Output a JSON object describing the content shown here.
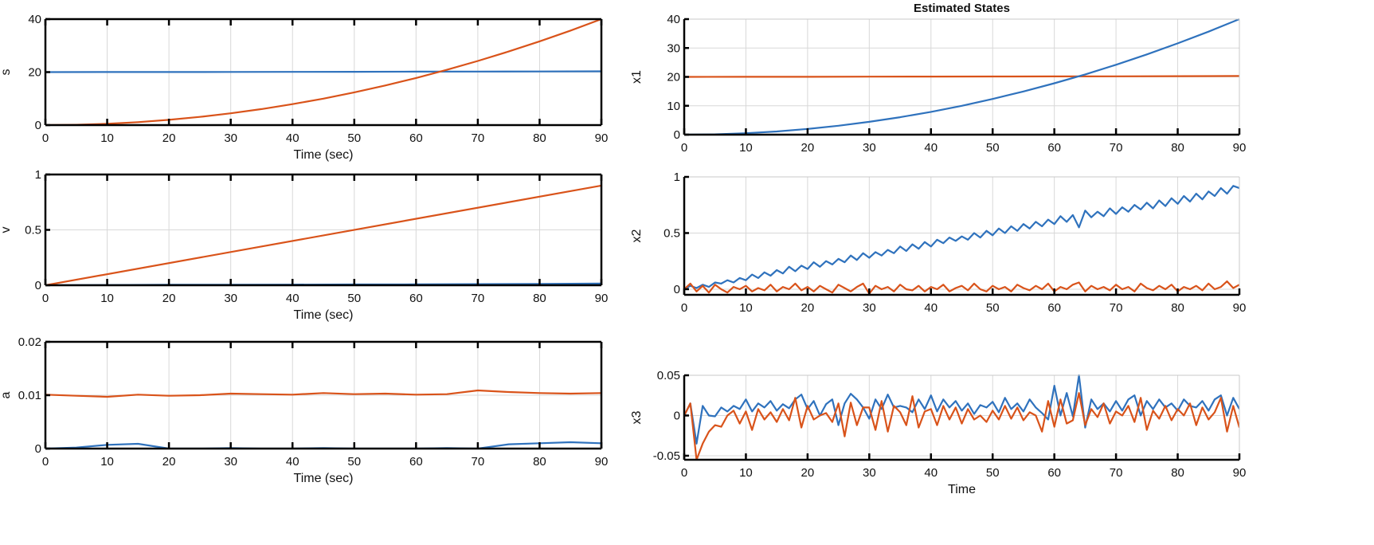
{
  "colors": {
    "series_blue": "#2F72BD",
    "series_orange": "#D9531A",
    "grid": "#D8D8D8"
  },
  "time": [
    0,
    1,
    2,
    3,
    4,
    5,
    6,
    7,
    8,
    9,
    10,
    11,
    12,
    13,
    14,
    15,
    16,
    17,
    18,
    19,
    20,
    21,
    22,
    23,
    24,
    25,
    26,
    27,
    28,
    29,
    30,
    31,
    32,
    33,
    34,
    35,
    36,
    37,
    38,
    39,
    40,
    41,
    42,
    43,
    44,
    45,
    46,
    47,
    48,
    49,
    50,
    51,
    52,
    53,
    54,
    55,
    56,
    57,
    58,
    59,
    60,
    61,
    62,
    63,
    64,
    65,
    66,
    67,
    68,
    69,
    70,
    71,
    72,
    73,
    74,
    75,
    76,
    77,
    78,
    79,
    80,
    81,
    82,
    83,
    84,
    85,
    86,
    87,
    88,
    89,
    90
  ],
  "chart_data": [
    {
      "id": "s",
      "type": "line",
      "title": "",
      "xlabel": "Time (sec)",
      "ylabel": "s",
      "xlim": [
        0,
        90
      ],
      "ylim": [
        0,
        40
      ],
      "xticks": [
        0,
        10,
        20,
        30,
        40,
        50,
        60,
        70,
        80,
        90
      ],
      "yticks": [
        0,
        20,
        40
      ],
      "yticklabels": [
        "0",
        "20",
        "40"
      ],
      "grid": true,
      "series": [
        {
          "color": "series_blue",
          "x": [
            0,
            10,
            20,
            30,
            40,
            50,
            60,
            70,
            80,
            90
          ],
          "values": [
            20,
            20.02,
            20.04,
            20.07,
            20.1,
            20.13,
            20.17,
            20.2,
            20.25,
            20.3
          ]
        },
        {
          "color": "series_orange",
          "x": [
            0,
            5,
            10,
            15,
            20,
            25,
            30,
            35,
            40,
            45,
            50,
            55,
            60,
            65,
            70,
            75,
            80,
            85,
            90
          ],
          "values": [
            0,
            0.12,
            0.49,
            1.11,
            1.98,
            3.09,
            4.44,
            6.05,
            7.9,
            10,
            12.35,
            14.94,
            17.78,
            20.86,
            24.2,
            27.78,
            31.6,
            35.68,
            40
          ]
        }
      ]
    },
    {
      "id": "v",
      "type": "line",
      "title": "",
      "xlabel": "Time (sec)",
      "ylabel": "v",
      "xlim": [
        0,
        90
      ],
      "ylim": [
        0,
        1
      ],
      "xticks": [
        0,
        10,
        20,
        30,
        40,
        50,
        60,
        70,
        80,
        90
      ],
      "yticks": [
        0,
        0.5,
        1
      ],
      "yticklabels": [
        "0",
        "0.5",
        "1"
      ],
      "grid": true,
      "series": [
        {
          "color": "series_blue",
          "x": [
            0,
            10,
            20,
            30,
            40,
            50,
            60,
            70,
            80,
            90
          ],
          "values": [
            0,
            0.002,
            0.004,
            0.005,
            0.006,
            0.007,
            0.008,
            0.01,
            0.012,
            0.015
          ]
        },
        {
          "color": "series_orange",
          "x": [
            0,
            90
          ],
          "values": [
            0,
            0.9
          ]
        }
      ]
    },
    {
      "id": "a",
      "type": "line",
      "title": "",
      "xlabel": "Time (sec)",
      "ylabel": "a",
      "xlim": [
        0,
        90
      ],
      "ylim": [
        0,
        0.02
      ],
      "xticks": [
        0,
        10,
        20,
        30,
        40,
        50,
        60,
        70,
        80,
        90
      ],
      "yticks": [
        0,
        0.01,
        0.02
      ],
      "yticklabels": [
        "0",
        "0.01",
        "0.02"
      ],
      "grid": true,
      "series": [
        {
          "color": "series_orange",
          "x": [
            0,
            5,
            10,
            15,
            20,
            25,
            30,
            35,
            40,
            45,
            50,
            55,
            60,
            65,
            70,
            75,
            80,
            85,
            90
          ],
          "values": [
            0.0101,
            0.0099,
            0.0097,
            0.0101,
            0.0099,
            0.01,
            0.0103,
            0.0102,
            0.0101,
            0.0104,
            0.0102,
            0.0103,
            0.0101,
            0.0102,
            0.0109,
            0.0106,
            0.0104,
            0.0103,
            0.0104
          ]
        },
        {
          "color": "series_blue",
          "x": [
            0,
            5,
            10,
            15,
            20,
            25,
            30,
            35,
            40,
            45,
            50,
            55,
            60,
            65,
            70,
            75,
            80,
            85,
            90
          ],
          "values": [
            0,
            0.0002,
            0.0007,
            0.0009,
            0,
            0,
            0.0001,
            0,
            0,
            0.0001,
            0,
            0,
            0,
            0.0001,
            0,
            0.0008,
            0.001,
            0.0012,
            0.001
          ]
        }
      ]
    },
    {
      "id": "x1",
      "type": "line",
      "title": "Estimated States",
      "xlabel": "",
      "ylabel": "x1",
      "xlim": [
        0,
        90
      ],
      "ylim": [
        0,
        40
      ],
      "xticks": [
        0,
        10,
        20,
        30,
        40,
        50,
        60,
        70,
        80,
        90
      ],
      "yticks": [
        0,
        10,
        20,
        30,
        40
      ],
      "yticklabels": [
        "0",
        "10",
        "20",
        "30",
        "40"
      ],
      "grid": true,
      "series": [
        {
          "color": "series_orange",
          "x": [
            0,
            10,
            20,
            30,
            40,
            50,
            60,
            70,
            80,
            90
          ],
          "values": [
            20,
            20.02,
            20.04,
            20.07,
            20.1,
            20.13,
            20.17,
            20.2,
            20.25,
            20.3
          ]
        },
        {
          "color": "series_blue",
          "x": [
            0,
            5,
            10,
            15,
            20,
            25,
            30,
            35,
            40,
            45,
            50,
            55,
            60,
            65,
            70,
            75,
            80,
            85,
            90
          ],
          "values": [
            0,
            0.12,
            0.49,
            1.11,
            1.98,
            3.09,
            4.44,
            6.05,
            7.9,
            10,
            12.35,
            14.94,
            17.78,
            20.86,
            24.2,
            27.78,
            31.6,
            35.68,
            40
          ]
        }
      ]
    },
    {
      "id": "x2",
      "type": "line",
      "title": "",
      "xlabel": "",
      "ylabel": "x2",
      "xlim": [
        0,
        90
      ],
      "ylim": [
        -0.05,
        1
      ],
      "xticks": [
        0,
        10,
        20,
        30,
        40,
        50,
        60,
        70,
        80,
        90
      ],
      "yticks": [
        0,
        0.5,
        1
      ],
      "yticklabels": [
        "0",
        "0.5",
        "1"
      ],
      "grid": true,
      "series": [
        {
          "color": "series_blue",
          "x": "time",
          "values": [
            0.0,
            0.03,
            0.01,
            0.04,
            0.02,
            0.06,
            0.05,
            0.08,
            0.06,
            0.1,
            0.08,
            0.13,
            0.1,
            0.15,
            0.12,
            0.17,
            0.14,
            0.2,
            0.16,
            0.21,
            0.18,
            0.24,
            0.2,
            0.25,
            0.22,
            0.27,
            0.24,
            0.3,
            0.26,
            0.32,
            0.28,
            0.33,
            0.3,
            0.35,
            0.32,
            0.38,
            0.34,
            0.4,
            0.36,
            0.42,
            0.38,
            0.44,
            0.41,
            0.46,
            0.43,
            0.47,
            0.44,
            0.5,
            0.46,
            0.52,
            0.48,
            0.54,
            0.5,
            0.56,
            0.52,
            0.58,
            0.54,
            0.6,
            0.56,
            0.62,
            0.58,
            0.65,
            0.6,
            0.66,
            0.55,
            0.7,
            0.64,
            0.69,
            0.65,
            0.72,
            0.67,
            0.73,
            0.69,
            0.75,
            0.71,
            0.77,
            0.72,
            0.79,
            0.74,
            0.81,
            0.76,
            0.83,
            0.78,
            0.85,
            0.8,
            0.87,
            0.83,
            0.9,
            0.85,
            0.92,
            0.9
          ]
        },
        {
          "color": "series_orange",
          "x": "time",
          "values": [
            0.0,
            0.05,
            -0.02,
            0.03,
            -0.03,
            0.04,
            0.0,
            -0.03,
            0.02,
            0.0,
            0.03,
            -0.02,
            0.01,
            -0.01,
            0.04,
            -0.02,
            0.02,
            0.0,
            0.05,
            -0.01,
            0.02,
            -0.02,
            0.03,
            0.0,
            -0.03,
            0.04,
            0.01,
            -0.02,
            0.02,
            0.05,
            -0.04,
            0.03,
            0.0,
            0.02,
            -0.02,
            0.04,
            0.0,
            -0.01,
            0.03,
            -0.02,
            0.02,
            0.0,
            0.04,
            -0.02,
            0.01,
            0.03,
            -0.01,
            0.05,
            0.0,
            -0.02,
            0.03,
            0.0,
            0.02,
            -0.02,
            0.04,
            0.01,
            -0.01,
            0.03,
            0.0,
            0.05,
            -0.02,
            0.02,
            0.0,
            0.04,
            0.06,
            -0.02,
            0.03,
            0.0,
            0.02,
            -0.01,
            0.04,
            0.0,
            0.02,
            -0.02,
            0.05,
            0.01,
            -0.01,
            0.03,
            0.0,
            0.04,
            -0.02,
            0.02,
            0.0,
            0.03,
            -0.01,
            0.05,
            0.0,
            0.02,
            0.07,
            0.01,
            0.04
          ]
        }
      ]
    },
    {
      "id": "x3",
      "type": "line",
      "title": "",
      "xlabel": "Time",
      "ylabel": "x3",
      "xlim": [
        0,
        90
      ],
      "ylim": [
        -0.055,
        0.05
      ],
      "xticks": [
        0,
        10,
        20,
        30,
        40,
        50,
        60,
        70,
        80,
        90
      ],
      "yticks": [
        -0.05,
        0,
        0.05
      ],
      "yticklabels": [
        "-0.05",
        "0",
        "0.05"
      ],
      "grid": true,
      "series": [
        {
          "color": "series_blue",
          "x": "time",
          "values": [
            0.0,
            0.015,
            -0.035,
            0.012,
            0.0,
            -0.001,
            0.01,
            0.005,
            0.012,
            0.008,
            0.02,
            0.005,
            0.015,
            0.01,
            0.018,
            0.006,
            0.014,
            0.009,
            0.02,
            0.026,
            0.008,
            0.018,
            0.0,
            0.014,
            0.02,
            -0.012,
            0.015,
            0.027,
            0.02,
            0.01,
            -0.004,
            0.02,
            0.008,
            0.026,
            0.01,
            0.012,
            0.01,
            0.004,
            0.02,
            0.008,
            0.025,
            0.005,
            0.02,
            0.01,
            0.018,
            0.006,
            0.015,
            0.002,
            0.013,
            0.01,
            0.017,
            0.004,
            0.022,
            0.008,
            0.015,
            0.005,
            0.02,
            0.01,
            0.003,
            -0.005,
            0.037,
            0.0,
            0.028,
            -0.001,
            0.05,
            -0.015,
            0.02,
            0.008,
            0.015,
            0.005,
            0.018,
            0.006,
            0.02,
            0.025,
            0.0,
            0.018,
            0.008,
            0.02,
            0.01,
            0.015,
            0.006,
            0.02,
            0.012,
            0.01,
            0.018,
            0.006,
            0.02,
            0.025,
            0.0,
            0.022,
            0.008
          ]
        },
        {
          "color": "series_orange",
          "x": "time",
          "values": [
            0.0,
            0.015,
            -0.055,
            -0.035,
            -0.02,
            -0.012,
            -0.014,
            0.0,
            0.006,
            -0.01,
            0.005,
            -0.018,
            0.008,
            -0.005,
            0.004,
            -0.008,
            0.008,
            -0.006,
            0.022,
            -0.015,
            0.012,
            -0.005,
            0.0,
            0.003,
            -0.008,
            0.015,
            -0.026,
            0.016,
            -0.012,
            0.01,
            0.01,
            -0.018,
            0.018,
            -0.02,
            0.012,
            0.004,
            -0.012,
            0.024,
            -0.015,
            0.005,
            0.008,
            -0.012,
            0.012,
            -0.005,
            0.01,
            -0.01,
            0.008,
            -0.005,
            0.0,
            -0.008,
            0.006,
            -0.005,
            0.012,
            -0.004,
            0.01,
            -0.006,
            0.004,
            0.0,
            -0.02,
            0.018,
            -0.014,
            0.02,
            -0.01,
            -0.006,
            0.028,
            -0.012,
            0.008,
            -0.002,
            0.015,
            -0.01,
            0.005,
            0.0,
            0.012,
            -0.008,
            0.022,
            -0.018,
            0.006,
            -0.004,
            0.012,
            -0.006,
            0.008,
            0.0,
            0.015,
            -0.012,
            0.01,
            -0.005,
            0.004,
            0.022,
            -0.02,
            0.012,
            -0.015
          ]
        }
      ]
    }
  ]
}
